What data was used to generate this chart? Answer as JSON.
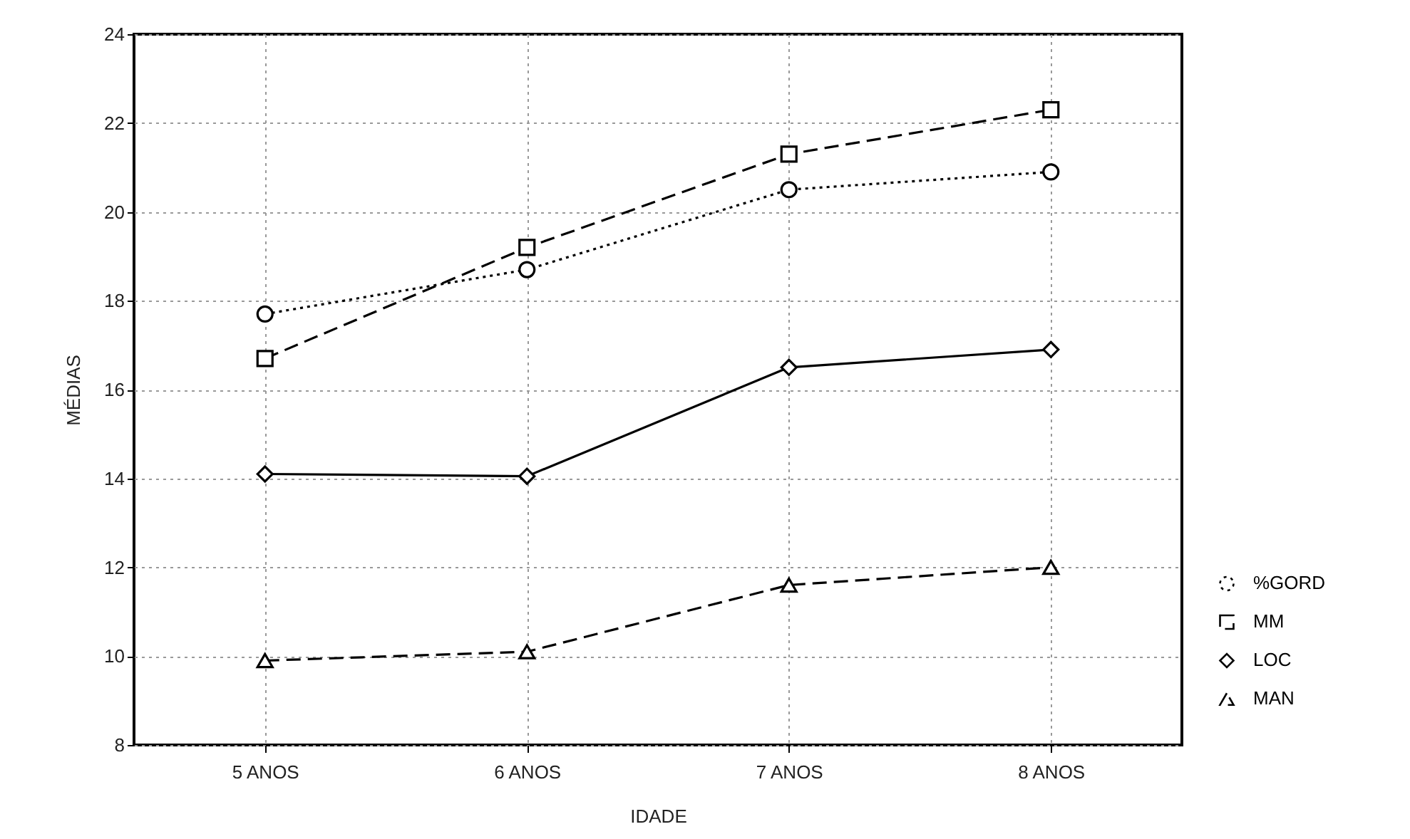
{
  "chart_data": {
    "type": "line",
    "xlabel": "IDADE",
    "ylabel": "MÉDIAS",
    "categories": [
      "5 ANOS",
      "6 ANOS",
      "7 ANOS",
      "8 ANOS"
    ],
    "series": [
      {
        "name": "%GORD",
        "color": "#000000",
        "marker": "circle",
        "line_style": "dotted",
        "values": [
          17.7,
          18.7,
          20.5,
          20.9
        ]
      },
      {
        "name": "MM",
        "color": "#000000",
        "marker": "square",
        "line_style": "dashed",
        "values": [
          16.7,
          19.2,
          21.3,
          22.3
        ]
      },
      {
        "name": "LOC",
        "color": "#000000",
        "marker": "diamond",
        "line_style": "solid",
        "values": [
          14.1,
          14.05,
          16.5,
          16.9
        ]
      },
      {
        "name": "MAN",
        "color": "#000000",
        "marker": "triangle",
        "line_style": "dashed",
        "values": [
          9.9,
          10.1,
          11.6,
          12.0
        ]
      }
    ],
    "ylim": [
      8,
      24
    ],
    "yticks": [
      8,
      10,
      12,
      14,
      16,
      18,
      20,
      22,
      24
    ],
    "grid": true,
    "legend": "right"
  }
}
